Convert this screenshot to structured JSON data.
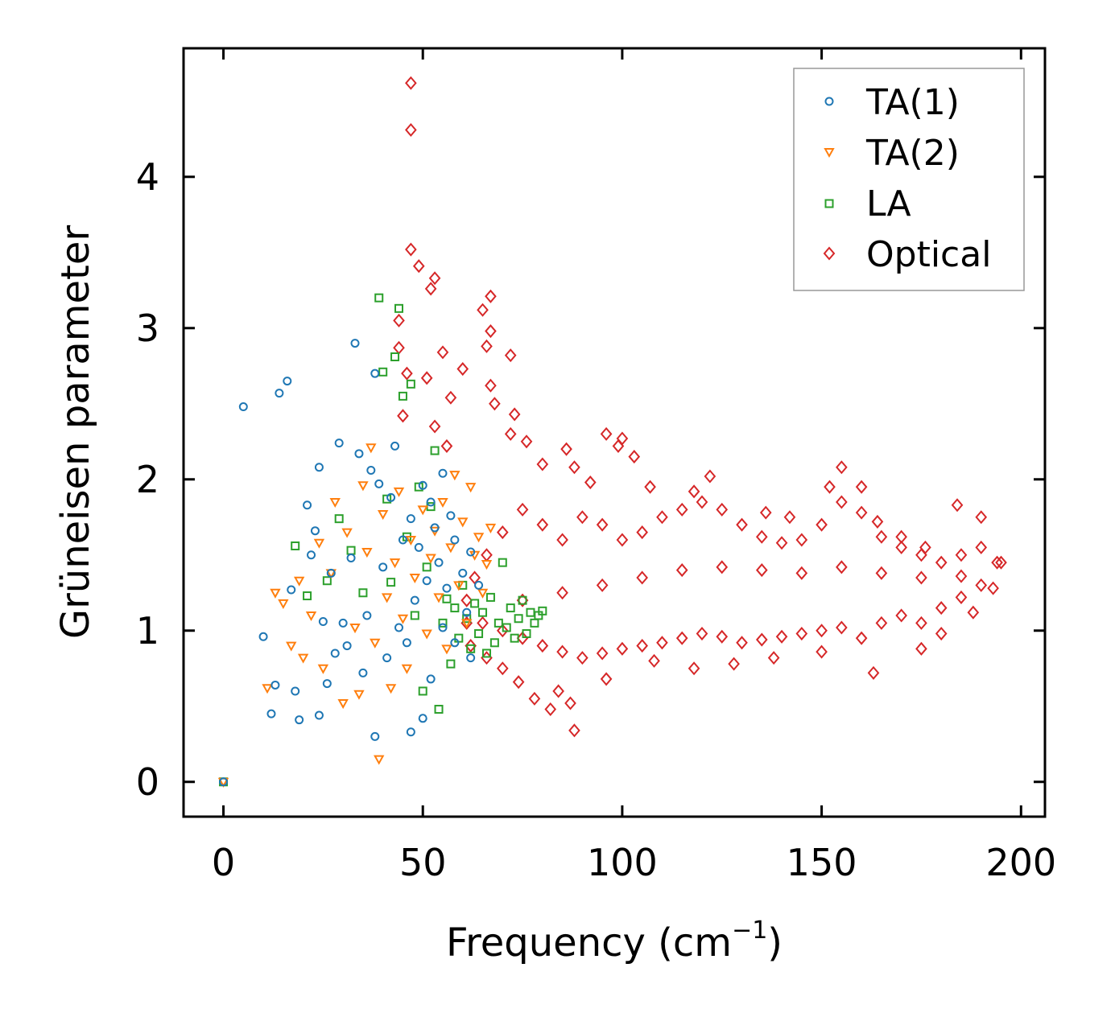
{
  "chart_data": {
    "type": "scatter",
    "title": "",
    "xlabel": "Frequency (cm",
    "xlabel_sup": "−1",
    "xlabel_close": ")",
    "ylabel": "Grüneisen parameter",
    "xlim": [
      -10,
      206
    ],
    "ylim": [
      -0.23,
      4.85
    ],
    "x_ticks": [
      0,
      50,
      100,
      150,
      200
    ],
    "y_ticks": [
      0,
      1,
      2,
      3,
      4
    ],
    "x_tick_labels": [
      "0",
      "50",
      "100",
      "150",
      "200"
    ],
    "y_tick_labels": [
      "0",
      "1",
      "2",
      "3",
      "4"
    ],
    "grid": false,
    "legend_position": "top-right",
    "series": [
      {
        "name": "TA(1)",
        "marker": "circle",
        "color": "#1f77b4",
        "points": [
          [
            0,
            0
          ],
          [
            5,
            2.48
          ],
          [
            10,
            0.96
          ],
          [
            12,
            0.45
          ],
          [
            13,
            0.64
          ],
          [
            14,
            2.57
          ],
          [
            16,
            2.65
          ],
          [
            17,
            1.27
          ],
          [
            18,
            0.6
          ],
          [
            19,
            0.41
          ],
          [
            21,
            1.83
          ],
          [
            22,
            1.5
          ],
          [
            23,
            1.66
          ],
          [
            24,
            0.44
          ],
          [
            24,
            2.08
          ],
          [
            25,
            1.06
          ],
          [
            26,
            0.65
          ],
          [
            27,
            1.38
          ],
          [
            28,
            0.85
          ],
          [
            29,
            2.24
          ],
          [
            30,
            1.05
          ],
          [
            31,
            0.9
          ],
          [
            32,
            1.48
          ],
          [
            33,
            2.9
          ],
          [
            34,
            2.17
          ],
          [
            35,
            0.72
          ],
          [
            36,
            1.1
          ],
          [
            37,
            2.06
          ],
          [
            38,
            2.7
          ],
          [
            38,
            0.3
          ],
          [
            39,
            1.97
          ],
          [
            40,
            1.42
          ],
          [
            41,
            0.82
          ],
          [
            42,
            1.88
          ],
          [
            43,
            2.22
          ],
          [
            44,
            1.02
          ],
          [
            45,
            1.6
          ],
          [
            46,
            0.92
          ],
          [
            47,
            1.74
          ],
          [
            47,
            0.33
          ],
          [
            48,
            1.2
          ],
          [
            49,
            1.55
          ],
          [
            50,
            1.96
          ],
          [
            50,
            0.42
          ],
          [
            51,
            1.33
          ],
          [
            52,
            1.85
          ],
          [
            52,
            0.68
          ],
          [
            53,
            1.68
          ],
          [
            54,
            1.45
          ],
          [
            55,
            1.02
          ],
          [
            55,
            2.04
          ],
          [
            56,
            1.28
          ],
          [
            57,
            1.76
          ],
          [
            58,
            0.92
          ],
          [
            58,
            1.6
          ],
          [
            60,
            1.38
          ],
          [
            61,
            1.12
          ],
          [
            62,
            1.52
          ],
          [
            62,
            0.82
          ],
          [
            64,
            1.3
          ]
        ]
      },
      {
        "name": "TA(2)",
        "marker": "triangle-down",
        "color": "#ff7f0e",
        "points": [
          [
            0,
            0
          ],
          [
            11,
            0.62
          ],
          [
            13,
            1.25
          ],
          [
            15,
            1.18
          ],
          [
            17,
            0.9
          ],
          [
            19,
            1.33
          ],
          [
            20,
            0.82
          ],
          [
            22,
            1.1
          ],
          [
            24,
            1.58
          ],
          [
            25,
            0.75
          ],
          [
            27,
            1.38
          ],
          [
            28,
            1.85
          ],
          [
            30,
            0.52
          ],
          [
            31,
            1.65
          ],
          [
            33,
            1.02
          ],
          [
            34,
            0.58
          ],
          [
            35,
            1.96
          ],
          [
            36,
            1.52
          ],
          [
            37,
            2.21
          ],
          [
            38,
            0.92
          ],
          [
            39,
            0.15
          ],
          [
            40,
            1.77
          ],
          [
            41,
            1.22
          ],
          [
            42,
            0.62
          ],
          [
            43,
            1.45
          ],
          [
            44,
            1.92
          ],
          [
            45,
            1.08
          ],
          [
            46,
            0.75
          ],
          [
            47,
            1.6
          ],
          [
            48,
            1.35
          ],
          [
            50,
            1.8
          ],
          [
            51,
            0.98
          ],
          [
            52,
            1.48
          ],
          [
            53,
            1.66
          ],
          [
            54,
            1.22
          ],
          [
            55,
            1.85
          ],
          [
            56,
            0.88
          ],
          [
            57,
            1.55
          ],
          [
            58,
            2.03
          ],
          [
            59,
            1.3
          ],
          [
            60,
            1.72
          ],
          [
            61,
            1.05
          ],
          [
            62,
            1.95
          ],
          [
            63,
            1.5
          ],
          [
            64,
            1.62
          ],
          [
            65,
            1.25
          ],
          [
            66,
            1.44
          ],
          [
            67,
            1.68
          ]
        ]
      },
      {
        "name": "LA",
        "marker": "square",
        "color": "#2ca02c",
        "points": [
          [
            0,
            0
          ],
          [
            18,
            1.56
          ],
          [
            21,
            1.23
          ],
          [
            26,
            1.33
          ],
          [
            29,
            1.74
          ],
          [
            32,
            1.53
          ],
          [
            35,
            1.25
          ],
          [
            39,
            3.2
          ],
          [
            40,
            2.71
          ],
          [
            41,
            1.87
          ],
          [
            42,
            1.32
          ],
          [
            43,
            2.81
          ],
          [
            44,
            3.13
          ],
          [
            45,
            2.55
          ],
          [
            46,
            1.62
          ],
          [
            47,
            2.63
          ],
          [
            48,
            1.1
          ],
          [
            49,
            1.95
          ],
          [
            50,
            0.6
          ],
          [
            51,
            1.42
          ],
          [
            52,
            1.82
          ],
          [
            53,
            2.19
          ],
          [
            54,
            0.48
          ],
          [
            55,
            1.05
          ],
          [
            56,
            1.21
          ],
          [
            57,
            0.78
          ],
          [
            58,
            1.15
          ],
          [
            59,
            0.95
          ],
          [
            60,
            1.3
          ],
          [
            61,
            1.08
          ],
          [
            62,
            0.88
          ],
          [
            63,
            1.18
          ],
          [
            64,
            0.98
          ],
          [
            65,
            1.12
          ],
          [
            66,
            0.85
          ],
          [
            67,
            1.22
          ],
          [
            68,
            0.92
          ],
          [
            69,
            1.05
          ],
          [
            70,
            1.45
          ],
          [
            71,
            1.02
          ],
          [
            72,
            1.15
          ],
          [
            73,
            0.95
          ],
          [
            74,
            1.08
          ],
          [
            75,
            1.2
          ],
          [
            76,
            0.98
          ],
          [
            77,
            1.12
          ],
          [
            78,
            1.05
          ],
          [
            79,
            1.1
          ],
          [
            80,
            1.13
          ]
        ]
      },
      {
        "name": "Optical",
        "marker": "diamond",
        "color": "#d62728",
        "points": [
          [
            47,
            4.62
          ],
          [
            47,
            4.31
          ],
          [
            47,
            3.52
          ],
          [
            49,
            3.41
          ],
          [
            53,
            3.33
          ],
          [
            52,
            3.26
          ],
          [
            44,
            3.05
          ],
          [
            44,
            2.87
          ],
          [
            46,
            2.7
          ],
          [
            51,
            2.67
          ],
          [
            55,
            2.84
          ],
          [
            57,
            2.54
          ],
          [
            60,
            2.73
          ],
          [
            65,
            3.12
          ],
          [
            67,
            3.21
          ],
          [
            67,
            2.98
          ],
          [
            66,
            2.88
          ],
          [
            72,
            2.82
          ],
          [
            67,
            2.62
          ],
          [
            68,
            2.5
          ],
          [
            73,
            2.43
          ],
          [
            45,
            2.42
          ],
          [
            53,
            2.35
          ],
          [
            56,
            2.22
          ],
          [
            72,
            2.3
          ],
          [
            76,
            2.25
          ],
          [
            80,
            2.1
          ],
          [
            86,
            2.2
          ],
          [
            88,
            2.08
          ],
          [
            92,
            1.98
          ],
          [
            96,
            2.3
          ],
          [
            99,
            2.22
          ],
          [
            100,
            2.27
          ],
          [
            103,
            2.15
          ],
          [
            107,
            1.95
          ],
          [
            118,
            1.92
          ],
          [
            122,
            2.02
          ],
          [
            136,
            1.78
          ],
          [
            142,
            1.75
          ],
          [
            152,
            1.95
          ],
          [
            155,
            2.08
          ],
          [
            160,
            1.95
          ],
          [
            164,
            1.72
          ],
          [
            170,
            1.62
          ],
          [
            176,
            1.55
          ],
          [
            184,
            1.83
          ],
          [
            190,
            1.75
          ],
          [
            195,
            1.45
          ],
          [
            193,
            1.28
          ],
          [
            188,
            1.12
          ],
          [
            180,
            0.98
          ],
          [
            175,
            0.88
          ],
          [
            163,
            0.72
          ],
          [
            150,
            0.86
          ],
          [
            138,
            0.82
          ],
          [
            128,
            0.78
          ],
          [
            118,
            0.75
          ],
          [
            108,
            0.8
          ],
          [
            96,
            0.68
          ],
          [
            88,
            0.34
          ],
          [
            87,
            0.52
          ],
          [
            84,
            0.6
          ],
          [
            82,
            0.48
          ],
          [
            78,
            0.55
          ],
          [
            74,
            0.66
          ],
          [
            70,
            0.75
          ],
          [
            66,
            0.82
          ],
          [
            62,
            0.9
          ],
          [
            61,
            1.05
          ],
          [
            61,
            1.2
          ],
          [
            63,
            1.35
          ],
          [
            66,
            1.5
          ],
          [
            70,
            1.65
          ],
          [
            75,
            1.8
          ],
          [
            80,
            1.7
          ],
          [
            85,
            1.6
          ],
          [
            90,
            1.75
          ],
          [
            95,
            1.7
          ],
          [
            100,
            1.6
          ],
          [
            105,
            1.65
          ],
          [
            110,
            1.75
          ],
          [
            115,
            1.8
          ],
          [
            120,
            1.85
          ],
          [
            125,
            1.8
          ],
          [
            130,
            1.7
          ],
          [
            135,
            1.62
          ],
          [
            140,
            1.58
          ],
          [
            145,
            1.6
          ],
          [
            150,
            1.7
          ],
          [
            155,
            1.85
          ],
          [
            160,
            1.78
          ],
          [
            165,
            1.62
          ],
          [
            170,
            1.55
          ],
          [
            175,
            1.5
          ],
          [
            180,
            1.45
          ],
          [
            185,
            1.5
          ],
          [
            190,
            1.55
          ],
          [
            194,
            1.45
          ],
          [
            190,
            1.3
          ],
          [
            185,
            1.22
          ],
          [
            180,
            1.15
          ],
          [
            175,
            1.05
          ],
          [
            170,
            1.1
          ],
          [
            165,
            1.05
          ],
          [
            160,
            0.95
          ],
          [
            155,
            1.02
          ],
          [
            150,
            1.0
          ],
          [
            145,
            0.98
          ],
          [
            140,
            0.96
          ],
          [
            135,
            0.94
          ],
          [
            130,
            0.92
          ],
          [
            125,
            0.96
          ],
          [
            120,
            0.98
          ],
          [
            115,
            0.95
          ],
          [
            110,
            0.92
          ],
          [
            105,
            0.9
          ],
          [
            100,
            0.88
          ],
          [
            95,
            0.85
          ],
          [
            90,
            0.82
          ],
          [
            85,
            0.86
          ],
          [
            80,
            0.9
          ],
          [
            75,
            0.95
          ],
          [
            70,
            1.0
          ],
          [
            65,
            1.05
          ],
          [
            75,
            1.2
          ],
          [
            85,
            1.25
          ],
          [
            95,
            1.3
          ],
          [
            105,
            1.35
          ],
          [
            115,
            1.4
          ],
          [
            125,
            1.42
          ],
          [
            135,
            1.4
          ],
          [
            145,
            1.38
          ],
          [
            155,
            1.42
          ],
          [
            165,
            1.38
          ],
          [
            175,
            1.35
          ],
          [
            185,
            1.36
          ]
        ]
      }
    ]
  }
}
